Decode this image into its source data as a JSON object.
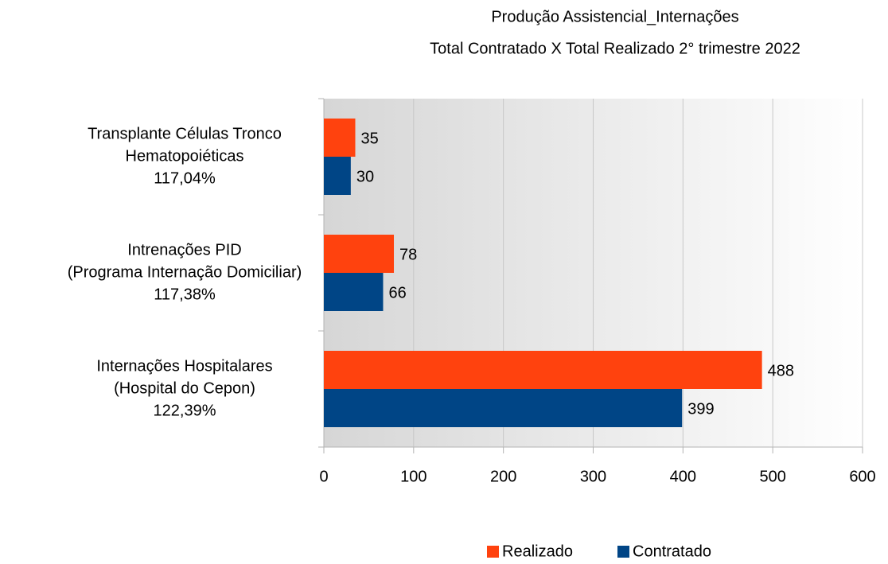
{
  "chart_data": {
    "type": "hbar",
    "title": "Produção Assistencial_Internações",
    "subtitle": "Total Contratado X Total Realizado 2° trimestre 2022",
    "categories": [
      [
        "Transplante Células Tronco",
        "Hematopoiéticas",
        "117,04%"
      ],
      [
        "Intrenações PID",
        "(Programa Internação Domiciliar)",
        "117,38%"
      ],
      [
        "Internações Hospitalares",
        "(Hospital do Cepon)",
        "122,39%"
      ]
    ],
    "series": [
      {
        "name": "Realizado",
        "color": "#ff420e",
        "values": [
          35,
          78,
          488
        ]
      },
      {
        "name": "Contratado",
        "color": "#004586",
        "values": [
          30,
          66,
          399
        ]
      }
    ],
    "xlim": [
      0,
      600
    ],
    "xticks": [
      0,
      100,
      200,
      300,
      400,
      500,
      600
    ],
    "grid": true,
    "legend": "bottom"
  }
}
